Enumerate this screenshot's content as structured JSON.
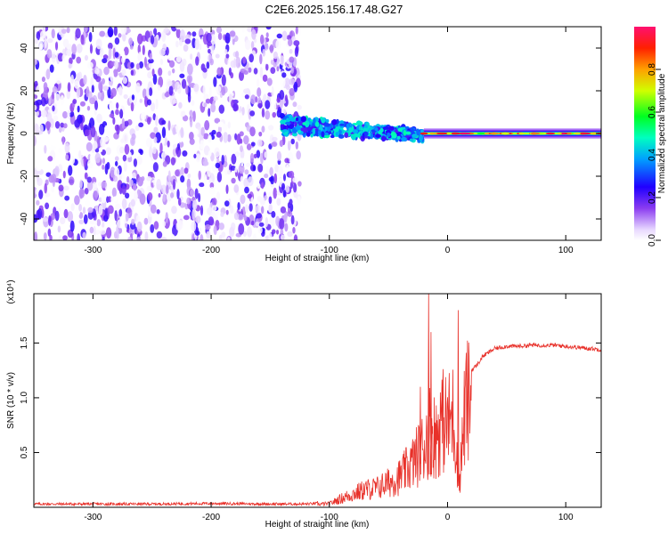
{
  "title": "C2E6.2025.156.17.48.G27",
  "chart_data": [
    {
      "type": "heatmap",
      "xlabel": "Height of straight line (km)",
      "ylabel": "Frequency (Hz)",
      "xlim": [
        -350,
        130
      ],
      "ylim": [
        -50,
        50
      ],
      "xticks": [
        -300,
        -200,
        -100,
        0,
        100
      ],
      "yticks": [
        -40,
        -20,
        0,
        20,
        40
      ],
      "colorbar": {
        "label": "Normalized spectral amplitude",
        "range": [
          0,
          1
        ],
        "ticks": [
          "0.0",
          "0.2",
          "0.4",
          "0.6",
          "0.8"
        ],
        "tick_values": [
          0,
          0.2,
          0.4,
          0.6,
          0.8
        ]
      },
      "description_regions": [
        {
          "x_range": [
            -350,
            -125
          ],
          "pattern": "scattered noise",
          "amplitude": [
            0,
            0.25
          ]
        },
        {
          "x_range": [
            -140,
            -20
          ],
          "pattern": "signal band, drifting",
          "freq_center_start": 4,
          "freq_center_end": 0,
          "amplitude": [
            0.2,
            0.5
          ]
        },
        {
          "x_range": [
            -20,
            130
          ],
          "pattern": "narrow steady line",
          "freq_center": 0,
          "amplitude": [
            0.6,
            1.0
          ]
        }
      ]
    },
    {
      "type": "line",
      "xlabel": "Height of straight line (km)",
      "ylabel": "SNR (10 * v/v)",
      "y_multiplier": "(x10⁴)",
      "xlim": [
        -350,
        130
      ],
      "ylim": [
        0,
        1.95
      ],
      "xticks": [
        -300,
        -200,
        -100,
        0,
        100
      ],
      "yticks": [
        "0.5",
        "1.0",
        "1.5"
      ],
      "ytick_values": [
        0.5,
        1.0,
        1.5
      ],
      "series": [
        {
          "color": "#e8312a",
          "x": [
            -350,
            -300,
            -250,
            -200,
            -150,
            -120,
            -100,
            -90,
            -80,
            -70,
            -60,
            -50,
            -40,
            -30,
            -25,
            -20,
            -15,
            -10,
            -5,
            0,
            5,
            10,
            15,
            20,
            25,
            30,
            40,
            50,
            60,
            70,
            80,
            90,
            100,
            110,
            120,
            130
          ],
          "y": [
            0.03,
            0.03,
            0.03,
            0.035,
            0.03,
            0.03,
            0.04,
            0.1,
            0.15,
            0.2,
            0.22,
            0.28,
            0.35,
            0.5,
            0.6,
            0.7,
            0.9,
            0.8,
            1.0,
            0.95,
            1.05,
            0.3,
            1.15,
            1.25,
            1.3,
            1.38,
            1.45,
            1.47,
            1.47,
            1.48,
            1.48,
            1.48,
            1.47,
            1.46,
            1.45,
            1.44
          ]
        }
      ],
      "spikes": [
        {
          "x": -16,
          "y": 1.95
        },
        {
          "x": -14,
          "y": 1.6
        },
        {
          "x": -23,
          "y": 1.1
        },
        {
          "x": 9,
          "y": 1.8
        },
        {
          "x": 10,
          "y": 0.15
        }
      ]
    }
  ]
}
